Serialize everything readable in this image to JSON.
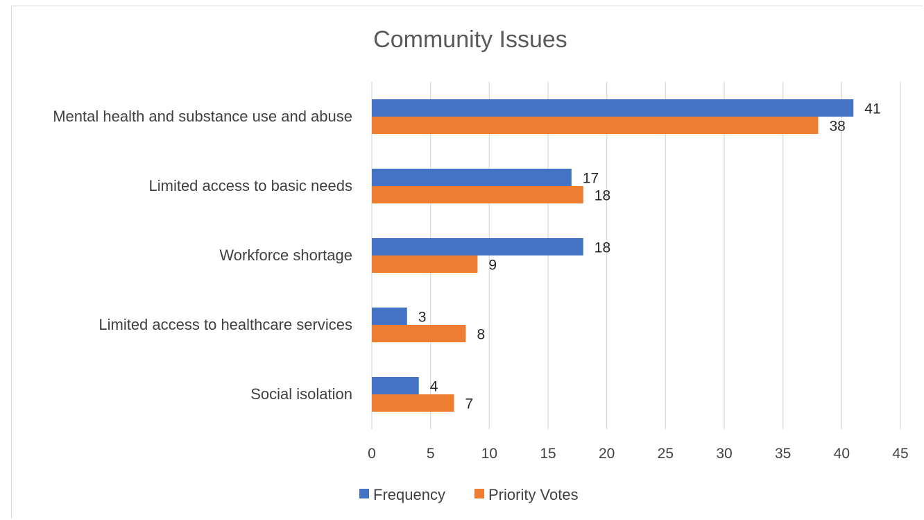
{
  "chart_data": {
    "type": "bar",
    "orientation": "horizontal",
    "title": "Community Issues",
    "xlabel": "",
    "ylabel": "",
    "categories": [
      "Mental health and substance use and abuse",
      "Limited access to basic needs",
      "Workforce shortage",
      "Limited access to healthcare services",
      "Social isolation"
    ],
    "series": [
      {
        "name": "Frequency",
        "color": "#4472C4",
        "values": [
          41,
          17,
          18,
          3,
          4
        ]
      },
      {
        "name": "Priority Votes",
        "color": "#ED7D31",
        "values": [
          38,
          18,
          9,
          8,
          7
        ]
      }
    ],
    "xlim": [
      0,
      45
    ],
    "x_ticks": [
      "0",
      "5",
      "10",
      "15",
      "20",
      "25",
      "30",
      "35",
      "40",
      "45"
    ],
    "tick_step": 5,
    "grid": "vertical gridlines",
    "legend_position": "bottom",
    "data_labels": true
  }
}
